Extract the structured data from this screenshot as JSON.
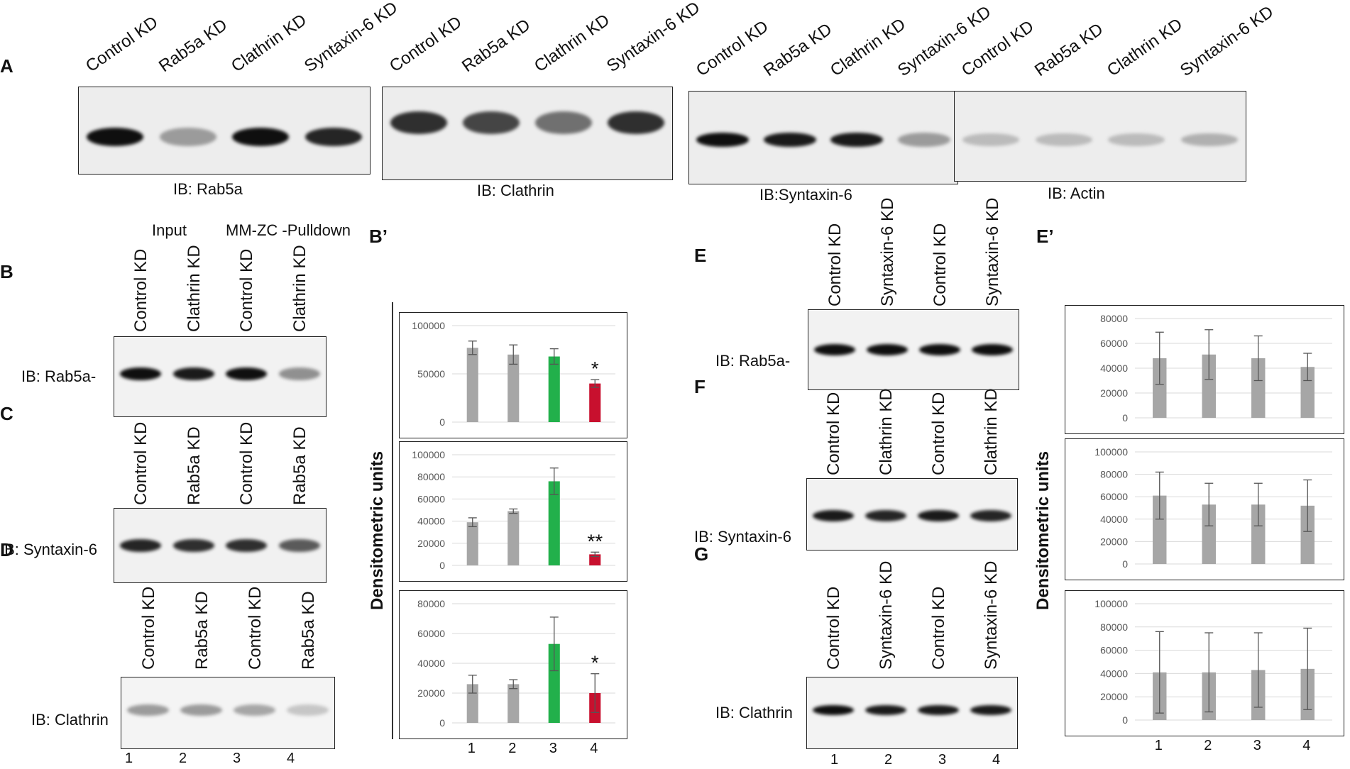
{
  "panels": {
    "A": "A",
    "B": "B",
    "Bp": "B’",
    "C": "C",
    "D": "D",
    "E": "E",
    "Ep": "E’",
    "F": "F",
    "G": "G"
  },
  "blots_a": [
    {
      "lanes": [
        "Control KD",
        "Rab5a KD",
        "Clathrin KD",
        "Syntaxin-6 KD"
      ],
      "caption": "IB:  Rab5a",
      "bands": [
        1.0,
        0.35,
        1.0,
        0.9
      ]
    },
    {
      "lanes": [
        "Control KD",
        "Rab5a KD",
        "Clathrin KD",
        "Syntaxin-6 KD"
      ],
      "caption": "IB:  Clathrin",
      "bands": [
        0.85,
        0.75,
        0.55,
        0.85
      ]
    },
    {
      "lanes": [
        "Control KD",
        "Rab5a KD",
        "Clathrin KD",
        "Syntaxin-6 KD"
      ],
      "caption": "IB:Syntaxin-6",
      "bands": [
        1.0,
        0.95,
        0.95,
        0.35
      ]
    },
    {
      "lanes": [
        "Control KD",
        "Rab5a KD",
        "Clathrin KD",
        "Syntaxin-6 KD"
      ],
      "caption": "IB:  Actin",
      "bands": [
        0.2,
        0.2,
        0.2,
        0.25
      ]
    }
  ],
  "header_b": {
    "input": "Input",
    "pulldown": "MM-ZC  -Pulldown"
  },
  "blot_b": {
    "lanes": [
      "Control KD",
      "Clathrin KD",
      "Control KD",
      "Clathrin KD"
    ],
    "caption": "IB:  Rab5a-",
    "bands": [
      1.0,
      0.95,
      1.0,
      0.4
    ]
  },
  "blot_c": {
    "lanes": [
      "Control KD",
      "Rab5a KD",
      "Control KD",
      "Rab5a KD"
    ],
    "caption": "IB:  Syntaxin-6",
    "bands": [
      0.9,
      0.85,
      0.85,
      0.65
    ]
  },
  "blot_d": {
    "lanes": [
      "Control KD",
      "Rab5a KD",
      "Control KD",
      "Rab5a KD"
    ],
    "caption": "IB:  Clathrin",
    "bands": [
      0.35,
      0.35,
      0.3,
      0.15
    ]
  },
  "lane_numbers": [
    "1",
    "2",
    "3",
    "4"
  ],
  "blot_e": {
    "lanes": [
      "Control KD",
      "Syntaxin-6 KD",
      "Control KD",
      "Syntaxin-6 KD"
    ],
    "caption": "IB:  Rab5a-",
    "bands": [
      1.0,
      1.0,
      1.0,
      1.0
    ]
  },
  "blot_f": {
    "lanes": [
      "Control KD",
      "Clathrin KD",
      "Control KD",
      "Clathrin KD"
    ],
    "caption": "IB:  Syntaxin-6",
    "bands": [
      0.95,
      0.9,
      0.95,
      0.9
    ]
  },
  "blot_g": {
    "lanes": [
      "Control KD",
      "Syntaxin-6 KD",
      "Control KD",
      "Syntaxin-6 KD"
    ],
    "caption": "IB:  Clathrin",
    "bands": [
      1.0,
      0.95,
      0.95,
      0.95
    ]
  },
  "ylabel": "Densitometric units",
  "colors": {
    "gray": "#a6a6a6",
    "green": "#22b04b",
    "red": "#c8102e"
  },
  "chart_data": [
    {
      "type": "bar",
      "categories": [
        "1",
        "2",
        "3",
        "4"
      ],
      "ylim": [
        0,
        100000
      ],
      "ticks": [
        "0",
        "50000",
        "100000"
      ],
      "values": [
        77000,
        70000,
        68000,
        40000
      ],
      "errors": [
        7000,
        10000,
        8000,
        4000
      ],
      "colors": [
        "gray",
        "gray",
        "green",
        "red"
      ],
      "annotations": [
        "",
        "",
        "",
        "*"
      ],
      "show_x": false
    },
    {
      "type": "bar",
      "categories": [
        "1",
        "2",
        "3",
        "4"
      ],
      "ylim": [
        0,
        100000
      ],
      "ticks": [
        "0",
        "20000",
        "40000",
        "60000",
        "80000",
        "100000"
      ],
      "values": [
        39000,
        49000,
        76000,
        10000
      ],
      "errors": [
        4000,
        2000,
        12000,
        2000
      ],
      "colors": [
        "gray",
        "gray",
        "green",
        "red"
      ],
      "annotations": [
        "",
        "",
        "",
        "**"
      ],
      "show_x": false
    },
    {
      "type": "bar",
      "categories": [
        "1",
        "2",
        "3",
        "4"
      ],
      "ylim": [
        0,
        80000
      ],
      "ticks": [
        "0",
        "20000",
        "40000",
        "60000",
        "80000"
      ],
      "values": [
        26000,
        26000,
        53000,
        20000
      ],
      "errors": [
        6000,
        3000,
        18000,
        13000
      ],
      "colors": [
        "gray",
        "gray",
        "green",
        "red"
      ],
      "annotations": [
        "",
        "",
        "",
        "*"
      ],
      "show_x": true
    },
    {
      "type": "bar",
      "categories": [
        "1",
        "2",
        "3",
        "4"
      ],
      "ylim": [
        0,
        80000
      ],
      "ticks": [
        "0",
        "20000",
        "40000",
        "60000",
        "80000"
      ],
      "values": [
        48000,
        51000,
        48000,
        41000
      ],
      "errors": [
        21000,
        20000,
        18000,
        11000
      ],
      "colors": [
        "gray",
        "gray",
        "gray",
        "gray"
      ],
      "annotations": [
        "",
        "",
        "",
        ""
      ],
      "show_x": false
    },
    {
      "type": "bar",
      "categories": [
        "1",
        "2",
        "3",
        "4"
      ],
      "ylim": [
        0,
        100000
      ],
      "ticks": [
        "0",
        "20000",
        "40000",
        "60000",
        "80000",
        "100000"
      ],
      "values": [
        61000,
        53000,
        53000,
        52000
      ],
      "errors": [
        21000,
        19000,
        19000,
        23000
      ],
      "colors": [
        "gray",
        "gray",
        "gray",
        "gray"
      ],
      "annotations": [
        "",
        "",
        "",
        ""
      ],
      "show_x": false
    },
    {
      "type": "bar",
      "categories": [
        "1",
        "2",
        "3",
        "4"
      ],
      "ylim": [
        0,
        100000
      ],
      "ticks": [
        "0",
        "20000",
        "40000",
        "60000",
        "80000",
        "100000"
      ],
      "values": [
        41000,
        41000,
        43000,
        44000
      ],
      "errors": [
        35000,
        34000,
        32000,
        35000
      ],
      "colors": [
        "gray",
        "gray",
        "gray",
        "gray"
      ],
      "annotations": [
        "",
        "",
        "",
        ""
      ],
      "show_x": true
    }
  ]
}
